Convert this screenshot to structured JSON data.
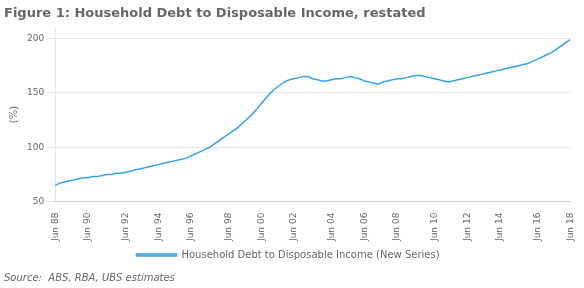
{
  "chart_data": {
    "type": "line",
    "title": "Figure 1: Household Debt to Disposable Income, restated",
    "y_label": "(%)",
    "annotations": [
      "Source:  ABS, RBA, UBS estimates"
    ],
    "categories": [
      "Jun 88",
      null,
      null,
      null,
      null,
      null,
      null,
      "Jun 90",
      null,
      null,
      null,
      null,
      null,
      null,
      null,
      "Jun 92",
      null,
      null,
      null,
      null,
      null,
      null,
      "Jun 94",
      null,
      null,
      null,
      null,
      null,
      null,
      "Jun 96",
      null,
      null,
      null,
      null,
      null,
      null,
      null,
      "Jun 98",
      null,
      null,
      null,
      null,
      null,
      null,
      "Jun 00",
      null,
      null,
      null,
      null,
      null,
      null,
      "Jun 02",
      null,
      null,
      null,
      null,
      null,
      null,
      null,
      "Jun 04",
      null,
      null,
      null,
      null,
      null,
      null,
      "Jun 06",
      null,
      null,
      null,
      null,
      null,
      null,
      "Jun 08",
      null,
      null,
      null,
      null,
      null,
      null,
      null,
      "Jun 10",
      null,
      null,
      null,
      null,
      null,
      null,
      "Jun 12",
      null,
      null,
      null,
      null,
      null,
      null,
      "Jun 14",
      null,
      null,
      null,
      null,
      null,
      null,
      null,
      "Jun 16",
      null,
      null,
      null,
      null,
      null,
      null,
      "Jun 18"
    ],
    "series": [
      {
        "name": "Household Debt to Disposable Income (New Series)",
        "values": [
          65,
          67,
          68,
          69,
          70,
          71,
          72,
          72,
          73,
          73,
          74,
          75,
          75,
          76,
          76,
          77,
          78,
          79,
          80,
          81,
          82,
          83,
          84,
          85,
          86,
          87,
          88,
          89,
          90,
          92,
          94,
          96,
          98,
          100,
          103,
          106,
          109,
          112,
          115,
          118,
          122,
          126,
          130,
          135,
          140,
          145,
          150,
          154,
          157,
          160,
          162,
          163,
          164,
          165,
          165,
          163,
          162,
          161,
          161,
          162,
          163,
          163,
          164,
          165,
          164,
          163,
          161,
          160,
          159,
          158,
          160,
          161,
          162,
          163,
          163,
          164,
          165,
          166,
          166,
          165,
          164,
          163,
          162,
          161,
          160,
          161,
          162,
          163,
          164,
          165,
          166,
          167,
          168,
          169,
          170,
          171,
          172,
          173,
          174,
          175,
          176,
          177,
          179,
          181,
          183,
          185,
          187,
          190,
          193,
          196,
          199
        ]
      }
    ],
    "ylim": [
      50,
      210
    ],
    "yticks": [
      50,
      100,
      150,
      200
    ],
    "grid": true,
    "legend": "bottom"
  }
}
